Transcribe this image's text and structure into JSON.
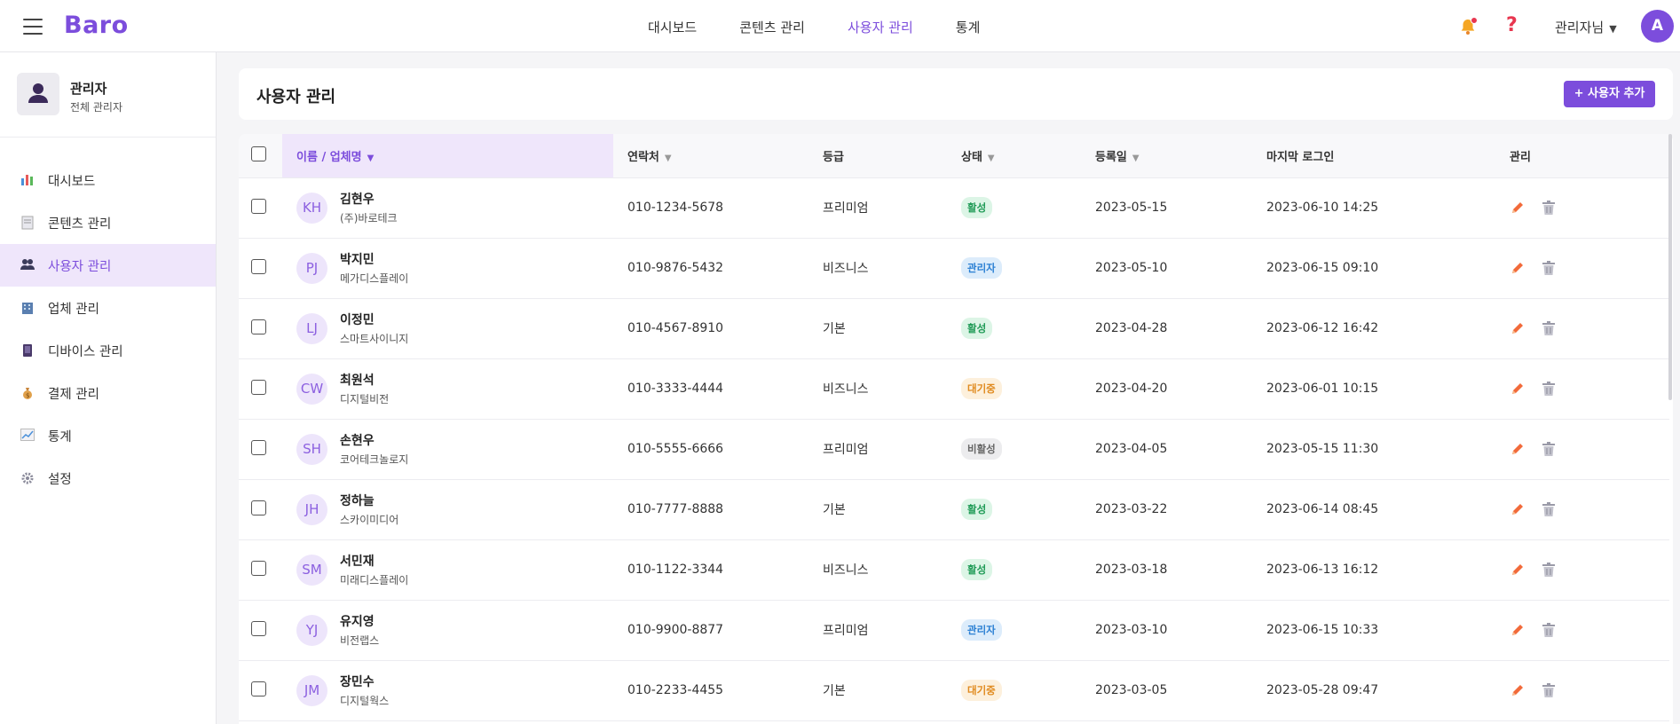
{
  "app": {
    "brand": "Baro"
  },
  "topnav": {
    "items": [
      {
        "label": "대시보드",
        "active": false
      },
      {
        "label": "콘텐츠 관리",
        "active": false
      },
      {
        "label": "사용자 관리",
        "active": true
      },
      {
        "label": "통계",
        "active": false
      }
    ],
    "user_label": "관리자님",
    "avatar_initial": "A"
  },
  "sidebar": {
    "profile": {
      "name": "관리자",
      "role": "전체 관리자"
    },
    "items": [
      {
        "label": "대시보드",
        "icon": "chart-icon",
        "active": false
      },
      {
        "label": "콘텐츠 관리",
        "icon": "document-icon",
        "active": false
      },
      {
        "label": "사용자 관리",
        "icon": "users-icon",
        "active": true
      },
      {
        "label": "업체 관리",
        "icon": "building-icon",
        "active": false
      },
      {
        "label": "디바이스 관리",
        "icon": "device-icon",
        "active": false
      },
      {
        "label": "결제 관리",
        "icon": "money-bag-icon",
        "active": false
      },
      {
        "label": "통계",
        "icon": "trend-icon",
        "active": false
      },
      {
        "label": "설정",
        "icon": "gear-icon",
        "active": false
      }
    ]
  },
  "page": {
    "title": "사용자 관리",
    "add_button": "+ 사용자 추가"
  },
  "table": {
    "headers": {
      "name": "이름 / 업체명",
      "contact": "연락처",
      "grade": "등급",
      "status": "상태",
      "registered": "등록일",
      "last_login": "마지막 로그인",
      "manage": "관리"
    },
    "rows": [
      {
        "initials": "KH",
        "name": "김현우",
        "company": "(주)바로테크",
        "phone": "010-1234-5678",
        "grade": "프리미엄",
        "status": "활성",
        "status_type": "active",
        "registered": "2023-05-15",
        "last_login": "2023-06-10 14:25"
      },
      {
        "initials": "PJ",
        "name": "박지민",
        "company": "메가디스플레이",
        "phone": "010-9876-5432",
        "grade": "비즈니스",
        "status": "관리자",
        "status_type": "admin",
        "registered": "2023-05-10",
        "last_login": "2023-06-15 09:10"
      },
      {
        "initials": "LJ",
        "name": "이정민",
        "company": "스마트사이니지",
        "phone": "010-4567-8910",
        "grade": "기본",
        "status": "활성",
        "status_type": "active",
        "registered": "2023-04-28",
        "last_login": "2023-06-12 16:42"
      },
      {
        "initials": "CW",
        "name": "최원석",
        "company": "디지털비전",
        "phone": "010-3333-4444",
        "grade": "비즈니스",
        "status": "대기중",
        "status_type": "wait",
        "registered": "2023-04-20",
        "last_login": "2023-06-01 10:15"
      },
      {
        "initials": "SH",
        "name": "손현우",
        "company": "코어테크놀로지",
        "phone": "010-5555-6666",
        "grade": "프리미엄",
        "status": "비활성",
        "status_type": "inactive",
        "registered": "2023-04-05",
        "last_login": "2023-05-15 11:30"
      },
      {
        "initials": "JH",
        "name": "정하늘",
        "company": "스카이미디어",
        "phone": "010-7777-8888",
        "grade": "기본",
        "status": "활성",
        "status_type": "active",
        "registered": "2023-03-22",
        "last_login": "2023-06-14 08:45"
      },
      {
        "initials": "SM",
        "name": "서민재",
        "company": "미래디스플레이",
        "phone": "010-1122-3344",
        "grade": "비즈니스",
        "status": "활성",
        "status_type": "active",
        "registered": "2023-03-18",
        "last_login": "2023-06-13 16:12"
      },
      {
        "initials": "YJ",
        "name": "유지영",
        "company": "비전랩스",
        "phone": "010-9900-8877",
        "grade": "프리미엄",
        "status": "관리자",
        "status_type": "admin",
        "registered": "2023-03-10",
        "last_login": "2023-06-15 10:33"
      },
      {
        "initials": "JM",
        "name": "장민수",
        "company": "디지털웍스",
        "phone": "010-2233-4455",
        "grade": "기본",
        "status": "대기중",
        "status_type": "wait",
        "registered": "2023-03-05",
        "last_login": "2023-05-28 09:47"
      }
    ]
  }
}
